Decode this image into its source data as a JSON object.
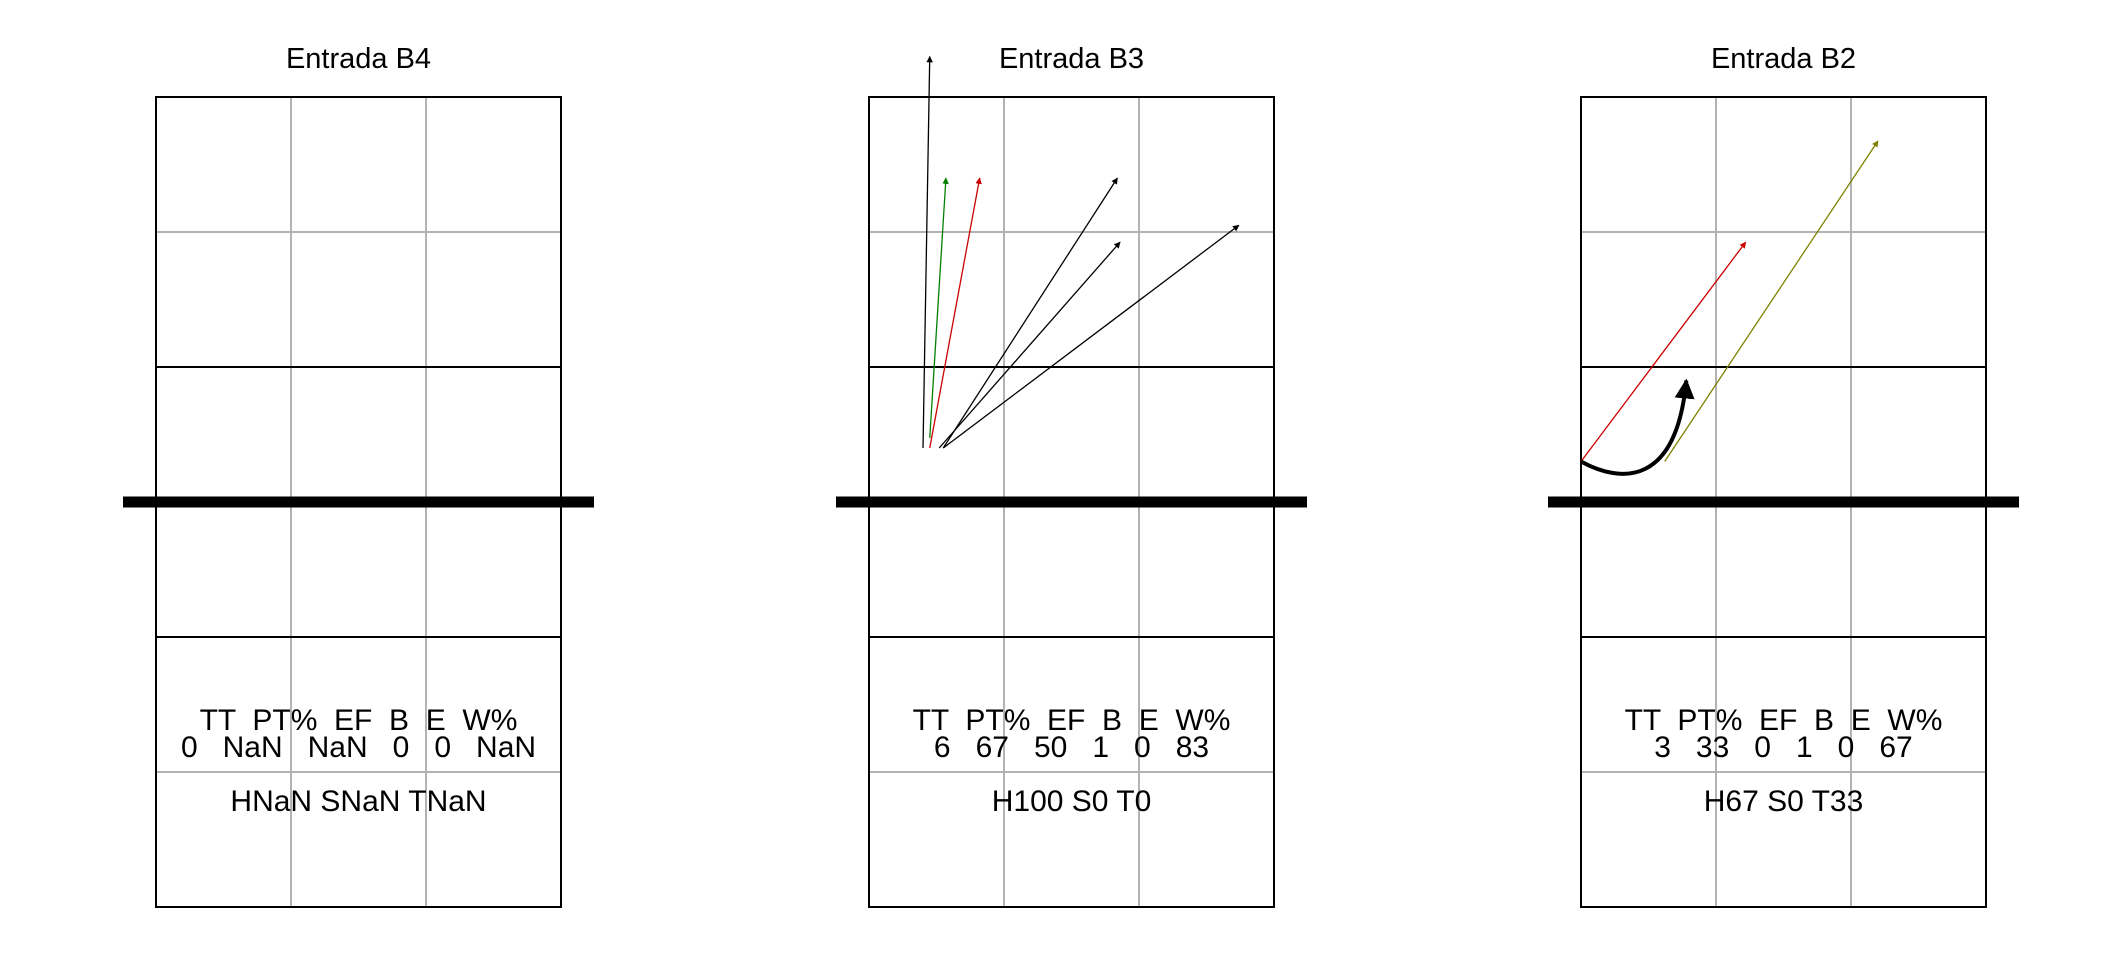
{
  "chart_data": [
    {
      "type": "other",
      "title": "Entrada B4",
      "stats_header": "TT  PT%  EF  B  E  W%",
      "stats_values": "0   NaN   NaN   0   0   NaN",
      "summary": "HNaN SNaN TNaN",
      "arrows": []
    },
    {
      "type": "other",
      "title": "Entrada B3",
      "stats_header": "TT  PT%  EF  B  E  W%",
      "stats_values": "6   67   50   1   0   83",
      "summary": "H100 S0 T0",
      "arrows": [
        {
          "color": "#000000",
          "start": [
            0.4,
            1.2
          ],
          "end": [
            0.45,
            7.0
          ]
        },
        {
          "color": "#008000",
          "start": [
            0.45,
            1.35
          ],
          "end": [
            0.57,
            5.2
          ]
        },
        {
          "color": "#cc0000",
          "start": [
            0.45,
            1.2
          ],
          "end": [
            0.82,
            5.2
          ]
        },
        {
          "color": "#000000",
          "start": [
            0.55,
            1.2
          ],
          "end": [
            1.84,
            5.2
          ]
        },
        {
          "color": "#000000",
          "start": [
            0.52,
            1.2
          ],
          "end": [
            1.86,
            4.25
          ]
        },
        {
          "color": "#000000",
          "start": [
            0.55,
            1.2
          ],
          "end": [
            2.74,
            4.5
          ]
        }
      ]
    },
    {
      "type": "other",
      "title": "Entrada B2",
      "stats_header": "TT  PT%  EF  B  E  W%",
      "stats_values": "3   33   0   1   0   67",
      "summary": "H67 S0 T33",
      "arrows": [
        {
          "color": "#cc0000",
          "start": [
            0.0,
            1.0
          ],
          "end": [
            1.22,
            4.25
          ]
        },
        {
          "color": "#808000",
          "start": [
            0.62,
            1.0
          ],
          "end": [
            2.2,
            5.75
          ]
        },
        {
          "color": "#000000",
          "start": [
            0.0,
            1.0
          ],
          "end": [
            0.78,
            2.2
          ],
          "curved": true
        }
      ]
    }
  ]
}
